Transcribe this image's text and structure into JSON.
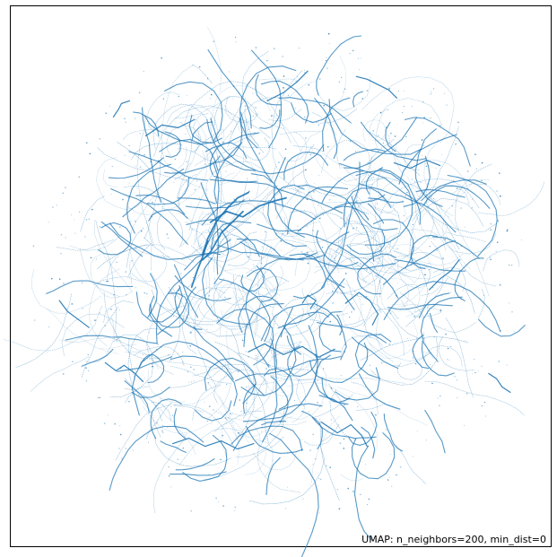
{
  "chart_data": {
    "type": "scatter",
    "title": "",
    "xlabel": "",
    "ylabel": "",
    "axes_visible": false,
    "grid": false,
    "legend": "none",
    "annotation": "UMAP: n_neighbors=200, min_dist=0",
    "annotation_placement": "bottom-right",
    "xlim": [
      -10,
      10
    ],
    "ylim": [
      -10,
      10
    ],
    "point_color": "#1f77b4",
    "curve_count": 520,
    "series": [
      {
        "x": [
          -2.6,
          -2.0,
          -1.4,
          -0.8,
          -0.2,
          0.2
        ],
        "y": [
          2.0,
          2.4,
          2.2,
          2.6,
          2.8,
          2.9
        ]
      },
      {
        "x": [
          -2.9,
          -2.7,
          -2.4,
          -2.0,
          -1.6,
          -1.2
        ],
        "y": [
          0.8,
          1.4,
          2.0,
          2.5,
          2.9,
          3.1
        ]
      },
      {
        "x": [
          -2.9,
          -2.6,
          -2.2,
          -1.8,
          -1.4
        ],
        "y": [
          0.6,
          0.9,
          1.6,
          2.0,
          2.4
        ]
      },
      {
        "x": [
          -3.3,
          -3.1,
          -2.9,
          -2.7
        ],
        "y": [
          -0.4,
          0.2,
          0.7,
          1.3
        ]
      },
      {
        "x": [
          -1.2,
          -0.6,
          0.1,
          0.8,
          1.4,
          2.0
        ],
        "y": [
          -2.8,
          -2.5,
          -2.9,
          -2.6,
          -3.0,
          -2.7
        ]
      },
      {
        "x": [
          2.4,
          2.9,
          3.3,
          3.6,
          3.4
        ],
        "y": [
          -1.0,
          -0.6,
          -0.9,
          -1.4,
          -1.8
        ]
      },
      {
        "x": [
          5.5,
          5.9,
          6.3,
          6.6
        ],
        "y": [
          -0.5,
          -0.1,
          0.2,
          0.6
        ]
      },
      {
        "x": [
          -6.5,
          -6.1,
          -5.8,
          -5.4,
          -5.1
        ],
        "y": [
          -3.2,
          -3.5,
          -3.3,
          -3.6,
          -3.9
        ]
      },
      {
        "x": [
          -4.0,
          -3.4,
          -2.8,
          -2.2,
          -1.6,
          -1.0
        ],
        "y": [
          -6.2,
          -6.0,
          -6.3,
          -6.1,
          -6.4,
          -6.2
        ]
      },
      {
        "x": [
          -5.0,
          -4.4,
          -3.8,
          -3.2
        ],
        "y": [
          5.2,
          5.6,
          5.5,
          5.8
        ]
      },
      {
        "x": [
          -0.5,
          0.1,
          0.6,
          1.0
        ],
        "y": [
          6.5,
          6.8,
          7.2,
          7.6
        ]
      },
      {
        "x": [
          4.2,
          4.8,
          5.4,
          5.9
        ],
        "y": [
          4.2,
          4.0,
          4.3,
          4.1
        ]
      },
      {
        "x": [
          7.7,
          8.0,
          8.2,
          8.5
        ],
        "y": [
          -3.6,
          -3.8,
          -4.1,
          -4.3
        ]
      },
      {
        "x": [
          -8.2,
          -7.9,
          -7.5,
          -7.1
        ],
        "y": [
          -0.9,
          -1.3,
          -1.6,
          -1.9
        ]
      },
      {
        "x": [
          1.5,
          2.1,
          2.6,
          3.0,
          3.2
        ],
        "y": [
          -5.4,
          -5.8,
          -5.5,
          -5.9,
          -6.3
        ]
      },
      {
        "x": [
          2.8,
          3.2,
          3.6,
          4.0,
          4.3
        ],
        "y": [
          7.4,
          7.3,
          7.1,
          6.9,
          6.6
        ]
      },
      {
        "x": [
          -6.2,
          -6.0,
          -5.9,
          -5.6
        ],
        "y": [
          5.9,
          6.2,
          6.4,
          6.5
        ]
      },
      {
        "x": [
          0.8,
          1.0,
          1.3,
          1.1
        ],
        "y": [
          -1.0,
          -0.7,
          -0.9,
          -1.2
        ]
      }
    ]
  }
}
